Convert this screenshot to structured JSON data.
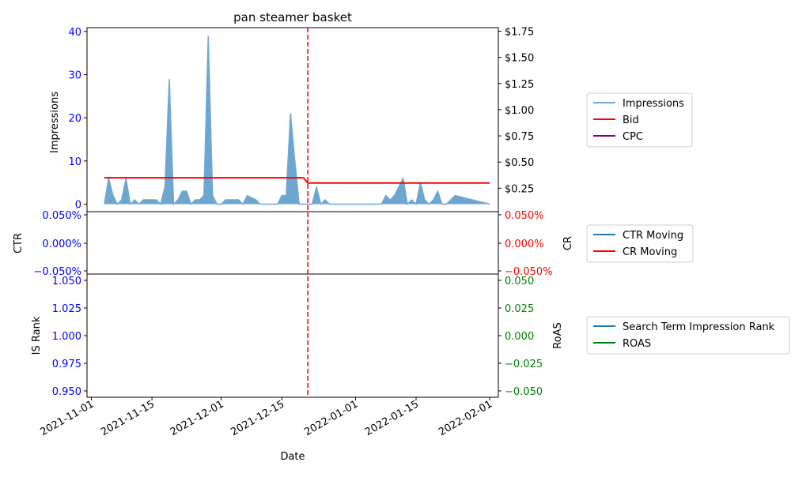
{
  "chart_data": [
    {
      "type": "area",
      "title": "pan steamer basket",
      "ylabel": "Impressions",
      "y2label": "",
      "ylim": [
        0,
        41
      ],
      "y2lim": [
        0,
        1.78
      ],
      "yticks": [
        "0",
        "10",
        "20",
        "30",
        "40"
      ],
      "y2ticks": [
        "$0.25",
        "$0.50",
        "$0.75",
        "$1.00",
        "$1.25",
        "$1.50",
        "$1.75"
      ],
      "xlim": [
        "2021-10-31",
        "2022-02-03"
      ],
      "event_date": "2021-12-21",
      "series": [
        {
          "name": "Impressions",
          "color": "#1f77b4",
          "points": [
            [
              "2021-11-04",
              0
            ],
            [
              "2021-11-05",
              6
            ],
            [
              "2021-11-06",
              2
            ],
            [
              "2021-11-07",
              0
            ],
            [
              "2021-11-08",
              1
            ],
            [
              "2021-11-09",
              6
            ],
            [
              "2021-11-10",
              0
            ],
            [
              "2021-11-11",
              1
            ],
            [
              "2021-11-12",
              0
            ],
            [
              "2021-11-13",
              1
            ],
            [
              "2021-11-14",
              1
            ],
            [
              "2021-11-15",
              1
            ],
            [
              "2021-11-16",
              1
            ],
            [
              "2021-11-17",
              0
            ],
            [
              "2021-11-18",
              4
            ],
            [
              "2021-11-19",
              29
            ],
            [
              "2021-11-20",
              0
            ],
            [
              "2021-11-21",
              1
            ],
            [
              "2021-11-22",
              3
            ],
            [
              "2021-11-23",
              3
            ],
            [
              "2021-11-24",
              0
            ],
            [
              "2021-11-25",
              1
            ],
            [
              "2021-11-26",
              1
            ],
            [
              "2021-11-27",
              2
            ],
            [
              "2021-11-28",
              39
            ],
            [
              "2021-11-29",
              2
            ],
            [
              "2021-11-30",
              0
            ],
            [
              "2021-12-01",
              0
            ],
            [
              "2021-12-02",
              1
            ],
            [
              "2021-12-03",
              1
            ],
            [
              "2021-12-04",
              1
            ],
            [
              "2021-12-05",
              1
            ],
            [
              "2021-12-06",
              0
            ],
            [
              "2021-12-07",
              2
            ],
            [
              "2021-12-08",
              1.5
            ],
            [
              "2021-12-09",
              1
            ],
            [
              "2021-12-10",
              0
            ],
            [
              "2021-12-14",
              0
            ],
            [
              "2021-12-15",
              2
            ],
            [
              "2021-12-16",
              2
            ],
            [
              "2021-12-17",
              21
            ],
            [
              "2021-12-18",
              10
            ],
            [
              "2021-12-19",
              0
            ],
            [
              "2021-12-22",
              0
            ],
            [
              "2021-12-23",
              4
            ],
            [
              "2021-12-24",
              0
            ],
            [
              "2021-12-25",
              1
            ],
            [
              "2021-12-26",
              0
            ],
            [
              "2022-01-07",
              0
            ],
            [
              "2022-01-08",
              2
            ],
            [
              "2022-01-09",
              1
            ],
            [
              "2022-01-10",
              2
            ],
            [
              "2022-01-11",
              4
            ],
            [
              "2022-01-12",
              6
            ],
            [
              "2022-01-13",
              0
            ],
            [
              "2022-01-14",
              1
            ],
            [
              "2022-01-15",
              0
            ],
            [
              "2022-01-16",
              5
            ],
            [
              "2022-01-17",
              1
            ],
            [
              "2022-01-18",
              0
            ],
            [
              "2022-01-19",
              1
            ],
            [
              "2022-01-20",
              3
            ],
            [
              "2022-01-21",
              0
            ],
            [
              "2022-01-22",
              0
            ],
            [
              "2022-01-24",
              2
            ],
            [
              "2022-02-01",
              0
            ]
          ]
        },
        {
          "name": "Bid",
          "color": "#ff0000",
          "axis": "right",
          "points": [
            [
              "2021-11-04",
              0.35
            ],
            [
              "2021-12-20",
              0.35
            ],
            [
              "2021-12-21",
              0.3
            ],
            [
              "2022-02-01",
              0.3
            ]
          ]
        },
        {
          "name": "CPC",
          "color": "#800080",
          "axis": "right",
          "points": []
        }
      ],
      "legend": {
        "placement": "outside-right",
        "items": [
          {
            "label": "Impressions",
            "color": "#6fa8d6"
          },
          {
            "label": "Bid",
            "color": "#ff0000"
          },
          {
            "label": "CPC",
            "color": "#800080"
          }
        ]
      }
    },
    {
      "type": "line",
      "ylabel": "CTR",
      "y2label": "CR",
      "yticks": [
        "0.050%",
        "0.000%",
        "−0.050%"
      ],
      "y2ticks": [
        "0.050%",
        "0.000%",
        "−0.050%"
      ],
      "series": [
        {
          "name": "CTR Moving",
          "color": "#1f77b4",
          "values": []
        },
        {
          "name": "CR Moving",
          "color": "#ff0000",
          "values": []
        }
      ],
      "legend": {
        "placement": "outside-right",
        "items": [
          {
            "label": "CTR Moving",
            "color": "#1f77b4"
          },
          {
            "label": "CR Moving",
            "color": "#ff0000"
          }
        ]
      }
    },
    {
      "type": "line",
      "ylabel": "IS Rank",
      "y2label": "RoAS",
      "xlabel": "Date",
      "yticks": [
        "1.050",
        "1.025",
        "1.000",
        "0.975",
        "0.950"
      ],
      "y2ticks": [
        "0.050",
        "0.025",
        "0.000",
        "−0.025",
        "−0.050"
      ],
      "xticks": [
        "2021-11-01",
        "2021-11-15",
        "2021-12-01",
        "2021-12-15",
        "2022-01-01",
        "2022-01-15",
        "2022-02-01"
      ],
      "series": [
        {
          "name": "Search Term Impression Rank",
          "color": "#1f77b4",
          "values": []
        },
        {
          "name": "ROAS",
          "color": "#008000",
          "values": []
        }
      ],
      "legend": {
        "placement": "outside-right",
        "items": [
          {
            "label": "Search Term Impression Rank",
            "color": "#1f77b4"
          },
          {
            "label": "ROAS",
            "color": "#008000"
          }
        ]
      }
    }
  ],
  "colors": {
    "left_axis": "#0000ff",
    "right_axis_top": "#ff0000",
    "right_axis_bottom": "#008000",
    "event_line": "#ff0000"
  }
}
